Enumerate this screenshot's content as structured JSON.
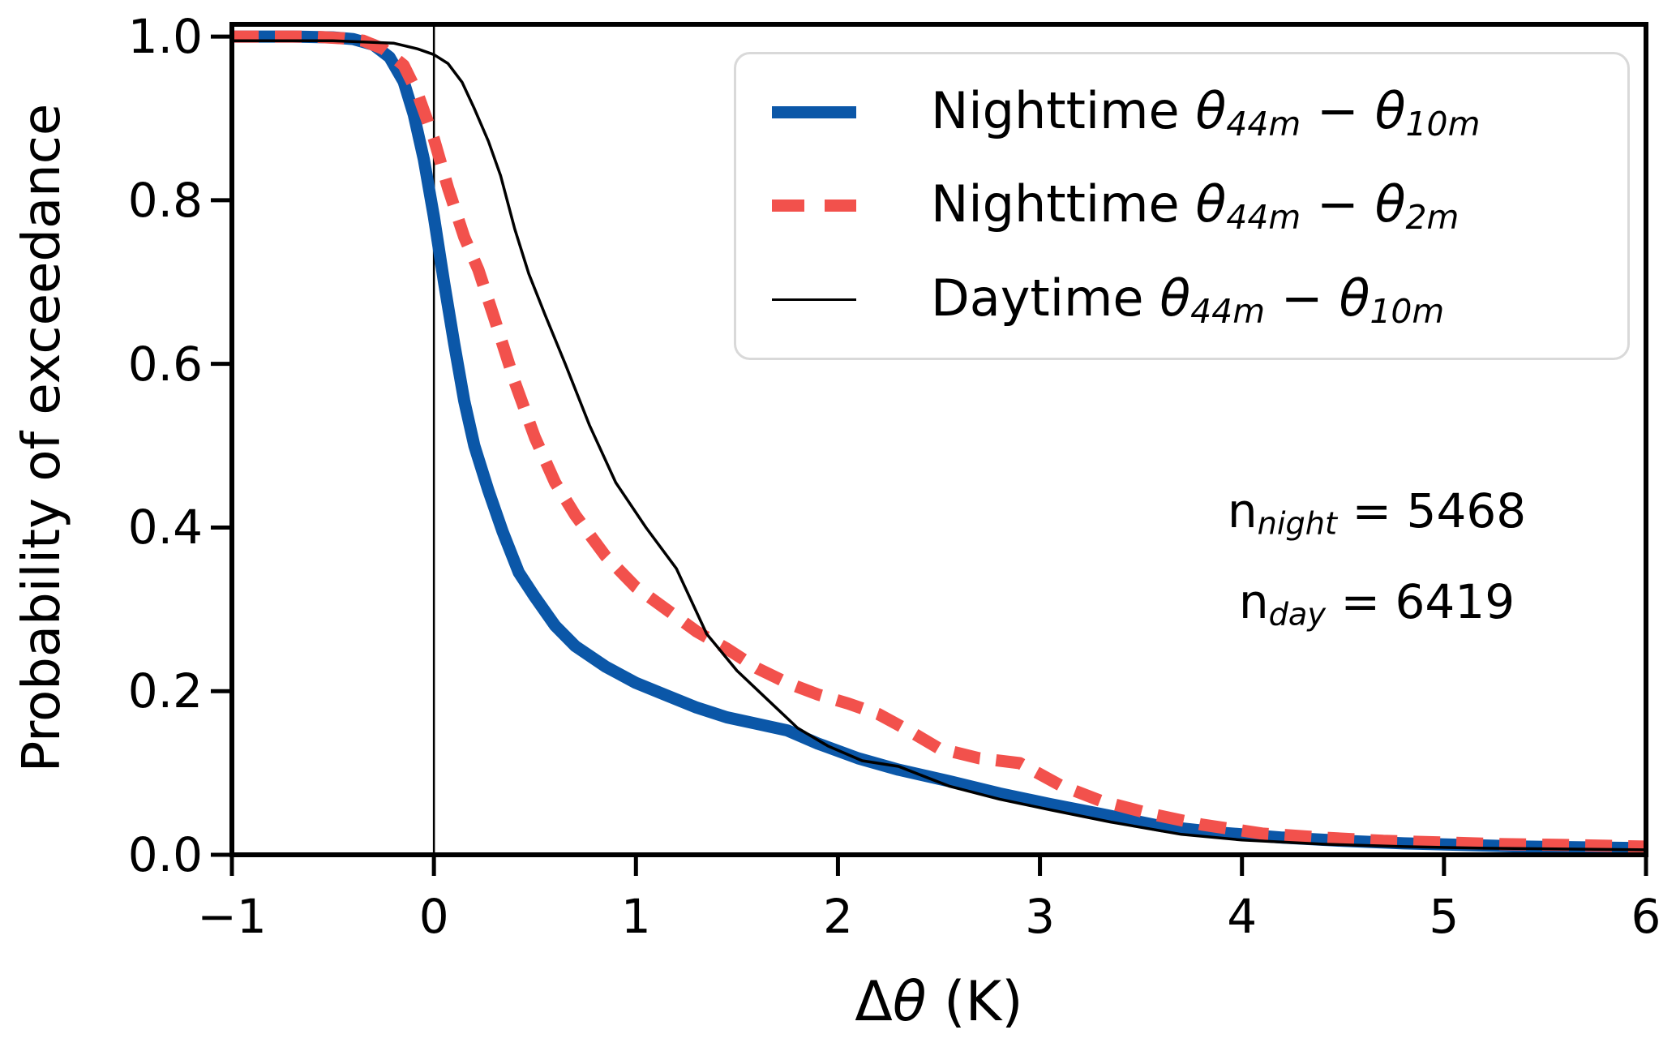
{
  "chart_data": {
    "type": "line",
    "title": "",
    "xlabel": {
      "delta": "Δ",
      "theta": "θ",
      "unit": " (K)"
    },
    "ylabel": "Probability of exceedance",
    "xlim": [
      -1,
      6
    ],
    "ylim": [
      0,
      1.015
    ],
    "grid": false,
    "xtick_values": [
      -1,
      0,
      1,
      2,
      3,
      4,
      5,
      6
    ],
    "xtick_labels": [
      "−1",
      "0",
      "1",
      "2",
      "3",
      "4",
      "5",
      "6"
    ],
    "ytick_values": [
      0,
      0.2,
      0.4,
      0.6,
      0.8,
      1.0
    ],
    "ytick_labels": [
      "0.0",
      "0.2",
      "0.4",
      "0.6",
      "0.8",
      "1.0"
    ],
    "reference_line_x": 0,
    "colors": {
      "night_44_10": "#0b57a8",
      "night_44_2": "#f2514c",
      "day_44_10": "#000000"
    },
    "series": [
      {
        "name": "nighttime-44m-10m",
        "color": "#0b57a8",
        "style": "solid",
        "width": 15,
        "x": [
          -1,
          -0.7,
          -0.5,
          -0.4,
          -0.3,
          -0.22,
          -0.15,
          -0.1,
          -0.05,
          0,
          0.05,
          0.1,
          0.15,
          0.2,
          0.27,
          0.34,
          0.42,
          0.5,
          0.6,
          0.7,
          0.85,
          1.0,
          1.15,
          1.3,
          1.45,
          1.6,
          1.75,
          1.9,
          2.1,
          2.3,
          2.55,
          2.8,
          3.05,
          3.3,
          3.6,
          3.9,
          4.2,
          4.5,
          4.8,
          5.1,
          5.4,
          5.7,
          6.0
        ],
        "y": [
          1.0,
          1.0,
          0.999,
          0.997,
          0.99,
          0.975,
          0.945,
          0.905,
          0.85,
          0.78,
          0.7,
          0.625,
          0.555,
          0.5,
          0.445,
          0.395,
          0.345,
          0.315,
          0.28,
          0.255,
          0.23,
          0.21,
          0.195,
          0.18,
          0.168,
          0.16,
          0.152,
          0.136,
          0.118,
          0.104,
          0.09,
          0.075,
          0.062,
          0.05,
          0.035,
          0.027,
          0.021,
          0.017,
          0.014,
          0.012,
          0.01,
          0.009,
          0.008
        ]
      },
      {
        "name": "nighttime-44m-2m",
        "color": "#f2514c",
        "style": "dashed",
        "width": 15,
        "x": [
          -1,
          -0.6,
          -0.45,
          -0.35,
          -0.25,
          -0.15,
          -0.08,
          0,
          0.07,
          0.15,
          0.22,
          0.3,
          0.4,
          0.5,
          0.6,
          0.7,
          0.85,
          1.0,
          1.15,
          1.3,
          1.45,
          1.6,
          1.75,
          1.9,
          2.05,
          2.2,
          2.35,
          2.5,
          2.7,
          2.9,
          3.1,
          3.3,
          3.55,
          3.8,
          4.1,
          4.4,
          4.7,
          5.0,
          5.3,
          5.6,
          6.0
        ],
        "y": [
          1.0,
          1.0,
          0.998,
          0.995,
          0.985,
          0.965,
          0.93,
          0.875,
          0.815,
          0.755,
          0.715,
          0.655,
          0.578,
          0.51,
          0.455,
          0.415,
          0.365,
          0.327,
          0.3,
          0.273,
          0.252,
          0.228,
          0.21,
          0.196,
          0.185,
          0.172,
          0.152,
          0.13,
          0.118,
          0.112,
          0.085,
          0.066,
          0.05,
          0.037,
          0.026,
          0.021,
          0.017,
          0.015,
          0.013,
          0.012,
          0.01
        ]
      },
      {
        "name": "daytime-44m-10m",
        "color": "#000000",
        "style": "solid",
        "width": 3.5,
        "x": [
          -1,
          -0.5,
          -0.2,
          -0.08,
          0,
          0.07,
          0.14,
          0.2,
          0.27,
          0.33,
          0.4,
          0.47,
          0.55,
          0.65,
          0.77,
          0.9,
          1.05,
          1.2,
          1.35,
          1.5,
          1.65,
          1.8,
          1.95,
          2.12,
          2.3,
          2.55,
          2.8,
          3.05,
          3.35,
          3.7,
          4.0,
          4.4,
          4.8,
          5.2,
          5.6,
          6.0
        ],
        "y": [
          0.995,
          0.995,
          0.992,
          0.985,
          0.978,
          0.967,
          0.944,
          0.912,
          0.872,
          0.83,
          0.765,
          0.71,
          0.66,
          0.6,
          0.525,
          0.455,
          0.4,
          0.35,
          0.27,
          0.225,
          0.19,
          0.155,
          0.133,
          0.115,
          0.108,
          0.084,
          0.068,
          0.055,
          0.04,
          0.025,
          0.018,
          0.013,
          0.01,
          0.008,
          0.007,
          0.006
        ]
      }
    ],
    "legend": {
      "position": "upper right",
      "entries": [
        {
          "prefix": "Nighttime ",
          "theta": "θ",
          "sub1": "44m",
          "minus": " − ",
          "theta2": "θ",
          "sub2": "10m"
        },
        {
          "prefix": "Nighttime ",
          "theta": "θ",
          "sub1": "44m",
          "minus": " − ",
          "theta2": "θ",
          "sub2": "2m"
        },
        {
          "prefix": "Daytime ",
          "theta": "θ",
          "sub1": "44m",
          "minus": " − ",
          "theta2": "θ",
          "sub2": "10m"
        }
      ]
    },
    "annotations": [
      {
        "pre": "n",
        "sub": "night",
        "eq": " = ",
        "value": "5468"
      },
      {
        "pre": "n",
        "sub": "day",
        "eq": " = ",
        "value": "6419"
      }
    ]
  }
}
